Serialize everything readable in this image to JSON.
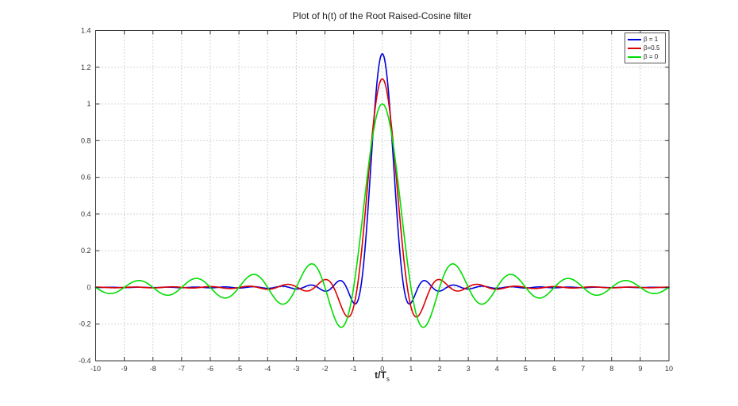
{
  "chart_data": {
    "type": "line",
    "title": "Plot of h(t) of the Root Raised-Cosine filter",
    "xlabel_main": "t/T",
    "xlabel_sub": "s",
    "xlim": [
      -10,
      10
    ],
    "ylim": [
      -0.4,
      1.4
    ],
    "xticks": [
      -10,
      -9,
      -8,
      -7,
      -6,
      -5,
      -4,
      -3,
      -2,
      -1,
      0,
      1,
      2,
      3,
      4,
      5,
      6,
      7,
      8,
      9,
      10
    ],
    "xtick_labels": [
      "-10",
      "-9",
      "-8",
      "-7",
      "-6",
      "-5",
      "-4",
      "-3",
      "-2",
      "-1",
      "0",
      "1",
      "2",
      "3",
      "4",
      "5",
      "6",
      "7",
      "8",
      "9",
      "10"
    ],
    "yticks": [
      -0.4,
      -0.2,
      0,
      0.2,
      0.4,
      0.6,
      0.8,
      1,
      1.2,
      1.4
    ],
    "ytick_labels": [
      "-0.4",
      "-0.2",
      "0",
      "0.2",
      "0.4",
      "0.6",
      "0.8",
      "1",
      "1.2",
      "1.4"
    ],
    "grid": "dotted",
    "grid_color": "#a8a8a8",
    "axis_color": "#333333",
    "legend_position": "top-right",
    "function": "root raised-cosine impulse response h(t) = [sin(πt(1−β)) + 4βt·cos(πt(1+β))] / [πt·(1−(4βt)²)], with h(0) = 1−β+4β/π",
    "sample_step": 0.02,
    "series": [
      {
        "label": "β = 1",
        "beta": 1,
        "color": "#0000dd",
        "h0": 1.2732,
        "key_points": [
          {
            "t": 0,
            "h": 1.2732
          },
          {
            "t": 1.05,
            "h": -0.085
          },
          {
            "t": 1.5,
            "h": 0.036
          },
          {
            "t": 2.0,
            "h": -0.02
          }
        ]
      },
      {
        "label": "β=0.5",
        "beta": 0.5,
        "color": "#dd0000",
        "h0": 1.1366,
        "key_points": [
          {
            "t": 0,
            "h": 1.1366
          },
          {
            "t": 1.2,
            "h": -0.165
          },
          {
            "t": 2.0,
            "h": 0.042
          },
          {
            "t": 3.5,
            "h": 0.011
          }
        ]
      },
      {
        "label": "β = 0",
        "beta": 0,
        "color": "#00dd00",
        "h0": 1.0,
        "key_points": [
          {
            "t": 0,
            "h": 1.0
          },
          {
            "t": 1.43,
            "h": -0.217
          },
          {
            "t": 2.46,
            "h": 0.128
          },
          {
            "t": 3.47,
            "h": -0.091
          },
          {
            "t": 4.48,
            "h": 0.071
          },
          {
            "t": 5.48,
            "h": -0.058
          },
          {
            "t": 6.48,
            "h": 0.049
          },
          {
            "t": 7.49,
            "h": -0.042
          },
          {
            "t": 8.49,
            "h": 0.037
          },
          {
            "t": 9.49,
            "h": -0.033
          }
        ]
      }
    ]
  }
}
